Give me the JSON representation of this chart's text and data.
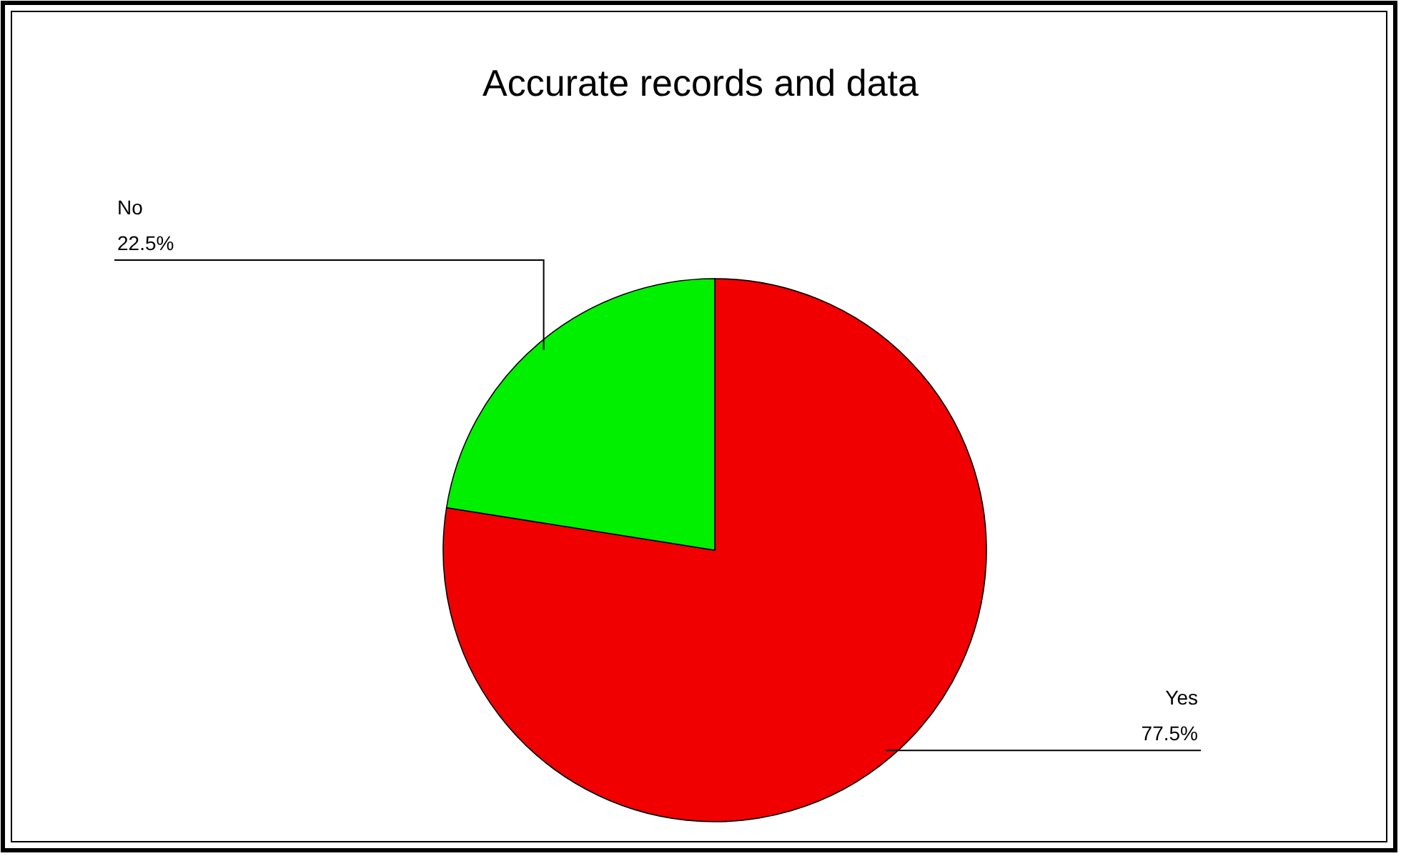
{
  "chart_data": {
    "type": "pie",
    "title": "Accurate records and data",
    "categories": [
      "Yes",
      "No"
    ],
    "values": [
      77.5,
      22.5
    ],
    "value_labels": [
      "77.5%",
      "22.5%"
    ],
    "colors": [
      "#f00000",
      "#00f000"
    ]
  }
}
